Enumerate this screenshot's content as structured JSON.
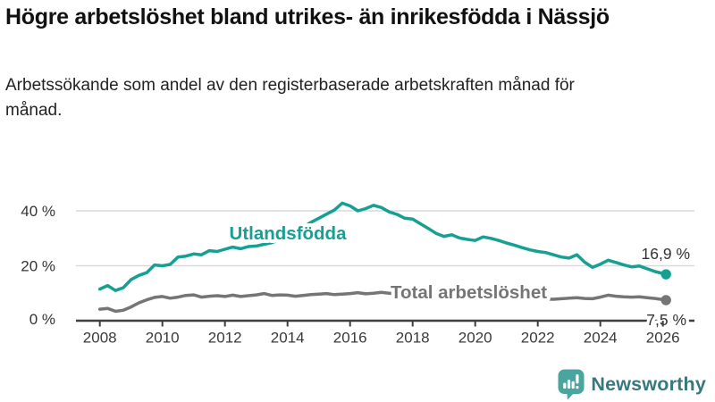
{
  "header": {
    "title": "Högre arbetslöshet bland utrikes- än inrikesfödda i Nässjö",
    "subtitle": "Arbetssökande som andel av den registerbaserade arbetskraften månad för månad."
  },
  "chart_data": {
    "type": "line",
    "title": "Högre arbetslöshet bland utrikes- än inrikesfödda i Nässjö",
    "xlabel": "",
    "ylabel": "",
    "unit": "%",
    "grid": "horizontal",
    "ylim": [
      0,
      45
    ],
    "xlim": [
      2007.9,
      2026.9
    ],
    "xticks": [
      2008,
      2010,
      2012,
      2014,
      2016,
      2018,
      2020,
      2022,
      2024,
      2026
    ],
    "yticks": [
      {
        "value": 0,
        "label": "0 %"
      },
      {
        "value": 20,
        "label": "20 %"
      },
      {
        "value": 40,
        "label": "40 %"
      }
    ],
    "x": [
      2008.0,
      2008.25,
      2008.5,
      2008.75,
      2009.0,
      2009.25,
      2009.5,
      2009.75,
      2010.0,
      2010.25,
      2010.5,
      2010.75,
      2011.0,
      2011.25,
      2011.5,
      2011.75,
      2012.0,
      2012.25,
      2012.5,
      2012.75,
      2013.0,
      2013.25,
      2013.5,
      2013.75,
      2014.0,
      2014.25,
      2014.5,
      2014.75,
      2015.0,
      2015.25,
      2015.5,
      2015.75,
      2016.0,
      2016.25,
      2016.5,
      2016.75,
      2017.0,
      2017.25,
      2017.5,
      2017.75,
      2018.0,
      2018.25,
      2018.5,
      2018.75,
      2019.0,
      2019.25,
      2019.5,
      2019.75,
      2020.0,
      2020.25,
      2020.5,
      2020.75,
      2021.0,
      2021.25,
      2021.5,
      2021.75,
      2022.0,
      2022.25,
      2022.5,
      2022.75,
      2023.0,
      2023.25,
      2023.5,
      2023.75,
      2024.0,
      2024.25,
      2024.5,
      2024.75,
      2025.0,
      2025.25,
      2025.5,
      2025.75,
      2026.1
    ],
    "series": [
      {
        "name": "Utlandsfödda",
        "color": "#16A093",
        "end_label": "16,9 %",
        "end_value": 16.9,
        "values": [
          11.5,
          12.8,
          11.0,
          12.0,
          15.0,
          16.5,
          17.5,
          20.3,
          20.0,
          20.5,
          23.2,
          23.5,
          24.3,
          24.0,
          25.5,
          25.2,
          26.0,
          26.8,
          26.2,
          27.0,
          27.2,
          27.8,
          28.4,
          29.6,
          31.0,
          32.5,
          34.0,
          35.8,
          37.3,
          38.8,
          40.3,
          42.8,
          41.8,
          40.0,
          40.8,
          42.0,
          41.2,
          39.6,
          38.7,
          37.3,
          37.0,
          35.3,
          33.6,
          31.8,
          30.7,
          31.3,
          30.1,
          29.6,
          29.2,
          30.5,
          30.0,
          29.2,
          28.3,
          27.5,
          26.6,
          25.8,
          25.2,
          24.8,
          24.0,
          23.2,
          22.8,
          24.0,
          21.3,
          19.4,
          20.6,
          22.0,
          21.2,
          20.3,
          19.6,
          19.9,
          18.9,
          17.9,
          16.9
        ]
      },
      {
        "name": "Total arbetslöshet",
        "color": "#757575",
        "end_label": "7,5 %",
        "end_value": 7.5,
        "values": [
          4.2,
          4.5,
          3.4,
          3.8,
          5.0,
          6.5,
          7.6,
          8.5,
          8.8,
          8.2,
          8.6,
          9.2,
          9.4,
          8.6,
          8.9,
          9.1,
          8.8,
          9.3,
          8.8,
          9.1,
          9.4,
          9.9,
          9.2,
          9.4,
          9.3,
          8.9,
          9.2,
          9.5,
          9.7,
          9.9,
          9.5,
          9.7,
          9.9,
          10.2,
          9.8,
          10.0,
          10.3,
          10.0,
          9.8,
          9.6,
          9.4,
          9.2,
          9.1,
          9.0,
          8.9,
          8.7,
          8.6,
          8.5,
          8.7,
          9.4,
          9.2,
          8.9,
          8.7,
          8.5,
          8.3,
          8.1,
          8.0,
          7.9,
          7.8,
          8.0,
          8.2,
          8.4,
          8.1,
          8.0,
          8.6,
          9.3,
          8.9,
          8.7,
          8.6,
          8.7,
          8.4,
          8.1,
          7.5
        ]
      }
    ],
    "colors": {
      "gridline": "#D9D9D9",
      "axis": "#3F3F3F"
    }
  },
  "footer": {
    "brand": "Newsworthy",
    "logo_color": "#4BA59F",
    "brand_text_color": "#37787E"
  }
}
